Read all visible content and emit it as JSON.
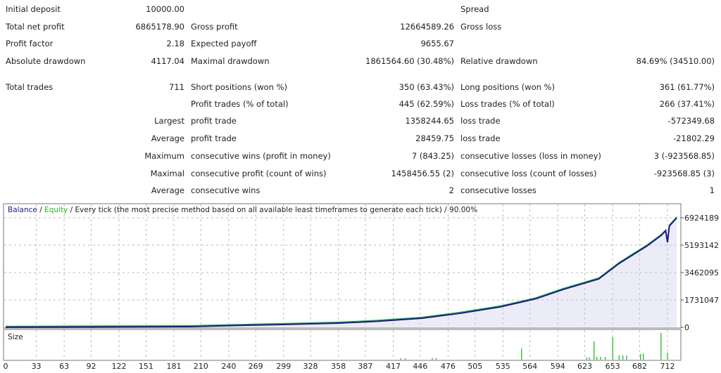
{
  "report": {
    "rows": [
      {
        "l1": "Initial deposit",
        "v1": "10000.00",
        "l2": "",
        "v2": "",
        "l3": "Spread",
        "v3": ""
      },
      {
        "l1": "Total net profit",
        "v1": "6865178.90",
        "l2": "Gross profit",
        "v2": "12664589.26",
        "l3": "Gross loss",
        "v3": ""
      },
      {
        "l1": "Profit factor",
        "v1": "2.18",
        "l2": "Expected payoff",
        "v2": "9655.67",
        "l3": "",
        "v3": ""
      },
      {
        "l1": "Absolute drawdown",
        "v1": "4117.04",
        "l2": "Maximal drawdown",
        "v2": "1861564.60 (30.48%)",
        "l3": "Relative drawdown",
        "v3": "84.69% (34510.00)"
      },
      {
        "l1": "Total trades",
        "v1": "711",
        "l2": "Short positions (won %)",
        "v2": "350 (63.43%)",
        "l3": "Long positions (won %)",
        "v3": "361 (61.77%)"
      },
      {
        "l1": "",
        "v1": "",
        "l2": "Profit trades (% of total)",
        "v2": "445 (62.59%)",
        "l3": "Loss trades (% of total)",
        "v3": "266 (37.41%)"
      },
      {
        "l1": "",
        "v1": "Largest",
        "l2": "profit trade",
        "v2": "1358244.65",
        "l3": "loss trade",
        "v3": "-572349.68"
      },
      {
        "l1": "",
        "v1": "Average",
        "l2": "profit trade",
        "v2": "28459.75",
        "l3": "loss trade",
        "v3": "-21802.29"
      },
      {
        "l1": "",
        "v1": "Maximum",
        "l2": "consecutive wins (profit in money)",
        "v2": "7 (843.25)",
        "l3": "consecutive losses (loss in money)",
        "v3": "3 (-923568.85)"
      },
      {
        "l1": "",
        "v1": "Maximal",
        "l2": "consecutive profit (count of wins)",
        "v2": "1458456.55 (2)",
        "l3": "consecutive loss (count of losses)",
        "v3": "-923568.85 (3)"
      },
      {
        "l1": "",
        "v1": "Average",
        "l2": "consecutive wins",
        "v2": "2",
        "l3": "consecutive losses",
        "v3": "1"
      }
    ]
  },
  "chart_data": {
    "type": "line",
    "legend": {
      "balance": "Balance",
      "sep1": " / ",
      "equity": "Equity",
      "rest": " / Every tick (the most precise method based on all available least timeframes to generate each tick) / 90.00%"
    },
    "colors": {
      "balance": "#1a1a8c",
      "equity": "#22bb22",
      "size": "#22bb22",
      "grid": "#bbbbbb"
    },
    "y_ticks": [
      "6924189",
      "5193142",
      "3462095",
      "1731047",
      "0"
    ],
    "ylim": [
      0,
      6924189
    ],
    "x_ticks": [
      "0",
      "33",
      "63",
      "92",
      "122",
      "151",
      "181",
      "210",
      "240",
      "269",
      "299",
      "328",
      "358",
      "387",
      "417",
      "446",
      "476",
      "505",
      "535",
      "564",
      "594",
      "623",
      "653",
      "682",
      "712"
    ],
    "xlim": [
      0,
      722
    ],
    "grid": true,
    "size_label": "Size",
    "balance": [
      [
        0,
        10000
      ],
      [
        100,
        25000
      ],
      [
        198,
        44000
      ],
      [
        250,
        120000
      ],
      [
        297,
        177000
      ],
      [
        358,
        266000
      ],
      [
        400,
        380000
      ],
      [
        448,
        577000
      ],
      [
        490,
        900000
      ],
      [
        532,
        1290000
      ],
      [
        570,
        1800000
      ],
      [
        600,
        2400000
      ],
      [
        638,
        3060000
      ],
      [
        660,
        4040000
      ],
      [
        690,
        5150000
      ],
      [
        705,
        5800000
      ],
      [
        710,
        6100000
      ],
      [
        712,
        5370000
      ],
      [
        714,
        6400000
      ],
      [
        722,
        6924189
      ]
    ],
    "size": [
      [
        425,
        0.05
      ],
      [
        430,
        0.05
      ],
      [
        459,
        0.06
      ],
      [
        463,
        0.06
      ],
      [
        555,
        0.4
      ],
      [
        625,
        0.08
      ],
      [
        628,
        0.08
      ],
      [
        633,
        0.65
      ],
      [
        636,
        0.1
      ],
      [
        640,
        0.1
      ],
      [
        645,
        0.1
      ],
      [
        653,
        0.8
      ],
      [
        660,
        0.15
      ],
      [
        664,
        0.15
      ],
      [
        668,
        0.15
      ],
      [
        683,
        0.2
      ],
      [
        686,
        0.22
      ],
      [
        705,
        0.95
      ],
      [
        712,
        0.25
      ]
    ]
  }
}
